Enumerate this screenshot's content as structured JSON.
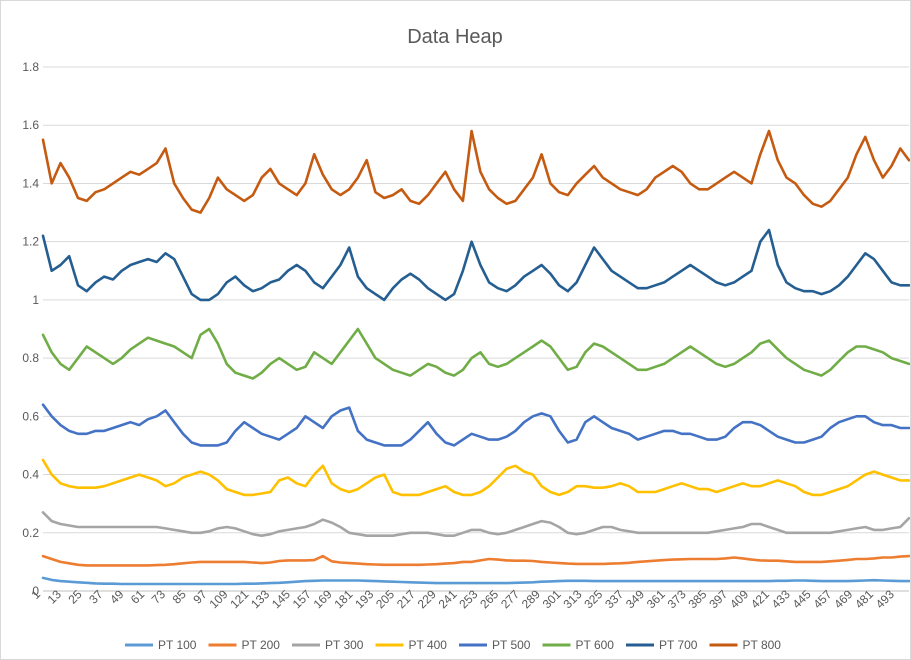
{
  "chart_data": {
    "type": "line",
    "title": "Data Heap",
    "xlabel": "",
    "ylabel": "",
    "x_start": 1,
    "x_end": 500,
    "x_tick_labels": [
      "1",
      "13",
      "25",
      "37",
      "49",
      "61",
      "73",
      "85",
      "97",
      "109",
      "121",
      "133",
      "145",
      "157",
      "169",
      "181",
      "193",
      "205",
      "217",
      "229",
      "241",
      "253",
      "265",
      "277",
      "289",
      "301",
      "313",
      "325",
      "337",
      "349",
      "361",
      "373",
      "385",
      "397",
      "409",
      "421",
      "433",
      "445",
      "457",
      "469",
      "481",
      "493"
    ],
    "y_tick_labels": [
      "0",
      "0.2",
      "0.4",
      "0.6",
      "0.8",
      "1",
      "1.2",
      "1.4",
      "1.6",
      "1.8"
    ],
    "ylim": [
      0,
      1.8
    ],
    "grid": true,
    "legend_position": "bottom",
    "series": [
      {
        "name": "PT 100",
        "color": "#5b9bd5",
        "values": [
          0.045,
          0.038,
          0.034,
          0.032,
          0.03,
          0.028,
          0.026,
          0.025,
          0.025,
          0.024,
          0.024,
          0.024,
          0.024,
          0.024,
          0.024,
          0.024,
          0.024,
          0.024,
          0.024,
          0.024,
          0.024,
          0.024,
          0.024,
          0.025,
          0.025,
          0.026,
          0.027,
          0.028,
          0.03,
          0.032,
          0.034,
          0.035,
          0.036,
          0.036,
          0.036,
          0.036,
          0.036,
          0.035,
          0.034,
          0.033,
          0.032,
          0.031,
          0.03,
          0.029,
          0.028,
          0.027,
          0.027,
          0.027,
          0.027,
          0.027,
          0.027,
          0.027,
          0.027,
          0.027,
          0.028,
          0.029,
          0.03,
          0.032,
          0.033,
          0.034,
          0.035,
          0.035,
          0.035,
          0.034,
          0.034,
          0.034,
          0.034,
          0.034,
          0.034,
          0.034,
          0.034,
          0.034,
          0.034,
          0.034,
          0.034,
          0.034,
          0.034,
          0.034,
          0.034,
          0.034,
          0.034,
          0.034,
          0.034,
          0.034,
          0.035,
          0.035,
          0.036,
          0.036,
          0.035,
          0.034,
          0.034,
          0.034,
          0.034,
          0.035,
          0.036,
          0.037,
          0.036,
          0.035,
          0.034,
          0.034
        ]
      },
      {
        "name": "PT 200",
        "color": "#ed7d31",
        "values": [
          0.12,
          0.11,
          0.1,
          0.095,
          0.09,
          0.088,
          0.088,
          0.088,
          0.088,
          0.088,
          0.088,
          0.088,
          0.088,
          0.089,
          0.09,
          0.092,
          0.095,
          0.098,
          0.1,
          0.1,
          0.1,
          0.1,
          0.1,
          0.1,
          0.098,
          0.096,
          0.098,
          0.103,
          0.105,
          0.105,
          0.105,
          0.106,
          0.12,
          0.102,
          0.098,
          0.096,
          0.094,
          0.092,
          0.091,
          0.09,
          0.09,
          0.09,
          0.09,
          0.09,
          0.091,
          0.092,
          0.094,
          0.096,
          0.1,
          0.1,
          0.105,
          0.11,
          0.108,
          0.105,
          0.104,
          0.104,
          0.103,
          0.1,
          0.098,
          0.096,
          0.094,
          0.093,
          0.093,
          0.093,
          0.093,
          0.094,
          0.095,
          0.097,
          0.1,
          0.102,
          0.104,
          0.106,
          0.108,
          0.109,
          0.11,
          0.11,
          0.11,
          0.11,
          0.112,
          0.115,
          0.112,
          0.108,
          0.105,
          0.104,
          0.104,
          0.102,
          0.1,
          0.1,
          0.1,
          0.1,
          0.102,
          0.104,
          0.107,
          0.11,
          0.11,
          0.112,
          0.115,
          0.115,
          0.118,
          0.12
        ]
      },
      {
        "name": "PT 300",
        "color": "#a5a5a5",
        "values": [
          0.27,
          0.24,
          0.23,
          0.225,
          0.22,
          0.22,
          0.22,
          0.22,
          0.22,
          0.22,
          0.22,
          0.22,
          0.22,
          0.22,
          0.215,
          0.21,
          0.205,
          0.2,
          0.2,
          0.205,
          0.215,
          0.22,
          0.215,
          0.205,
          0.195,
          0.19,
          0.195,
          0.205,
          0.21,
          0.215,
          0.22,
          0.23,
          0.245,
          0.235,
          0.22,
          0.2,
          0.195,
          0.19,
          0.19,
          0.19,
          0.19,
          0.195,
          0.2,
          0.2,
          0.2,
          0.195,
          0.19,
          0.19,
          0.2,
          0.21,
          0.21,
          0.2,
          0.195,
          0.2,
          0.21,
          0.22,
          0.23,
          0.24,
          0.235,
          0.22,
          0.2,
          0.195,
          0.2,
          0.21,
          0.22,
          0.22,
          0.21,
          0.205,
          0.2,
          0.2,
          0.2,
          0.2,
          0.2,
          0.2,
          0.2,
          0.2,
          0.2,
          0.205,
          0.21,
          0.215,
          0.22,
          0.23,
          0.23,
          0.22,
          0.21,
          0.2,
          0.2,
          0.2,
          0.2,
          0.2,
          0.2,
          0.205,
          0.21,
          0.215,
          0.22,
          0.21,
          0.21,
          0.215,
          0.22,
          0.25
        ]
      },
      {
        "name": "PT 400",
        "color": "#ffc000",
        "values": [
          0.45,
          0.4,
          0.37,
          0.36,
          0.355,
          0.355,
          0.355,
          0.36,
          0.37,
          0.38,
          0.39,
          0.4,
          0.39,
          0.38,
          0.36,
          0.37,
          0.39,
          0.4,
          0.41,
          0.4,
          0.38,
          0.35,
          0.34,
          0.33,
          0.33,
          0.335,
          0.34,
          0.38,
          0.39,
          0.37,
          0.36,
          0.4,
          0.43,
          0.37,
          0.35,
          0.34,
          0.35,
          0.37,
          0.39,
          0.4,
          0.34,
          0.33,
          0.33,
          0.33,
          0.34,
          0.35,
          0.36,
          0.34,
          0.33,
          0.33,
          0.34,
          0.36,
          0.39,
          0.42,
          0.43,
          0.41,
          0.4,
          0.36,
          0.34,
          0.33,
          0.34,
          0.36,
          0.36,
          0.355,
          0.355,
          0.36,
          0.37,
          0.36,
          0.34,
          0.34,
          0.34,
          0.35,
          0.36,
          0.37,
          0.36,
          0.35,
          0.35,
          0.34,
          0.35,
          0.36,
          0.37,
          0.36,
          0.36,
          0.37,
          0.38,
          0.37,
          0.36,
          0.34,
          0.33,
          0.33,
          0.34,
          0.35,
          0.36,
          0.38,
          0.4,
          0.41,
          0.4,
          0.39,
          0.38,
          0.38
        ]
      },
      {
        "name": "PT 500",
        "color": "#4472c4",
        "values": [
          0.64,
          0.6,
          0.57,
          0.55,
          0.54,
          0.54,
          0.55,
          0.55,
          0.56,
          0.57,
          0.58,
          0.57,
          0.59,
          0.6,
          0.62,
          0.58,
          0.54,
          0.51,
          0.5,
          0.5,
          0.5,
          0.51,
          0.55,
          0.58,
          0.56,
          0.54,
          0.53,
          0.52,
          0.54,
          0.56,
          0.6,
          0.58,
          0.56,
          0.6,
          0.62,
          0.63,
          0.55,
          0.52,
          0.51,
          0.5,
          0.5,
          0.5,
          0.52,
          0.55,
          0.58,
          0.54,
          0.51,
          0.5,
          0.52,
          0.54,
          0.53,
          0.52,
          0.52,
          0.53,
          0.55,
          0.58,
          0.6,
          0.61,
          0.6,
          0.55,
          0.51,
          0.52,
          0.58,
          0.6,
          0.58,
          0.56,
          0.55,
          0.54,
          0.52,
          0.53,
          0.54,
          0.55,
          0.55,
          0.54,
          0.54,
          0.53,
          0.52,
          0.52,
          0.53,
          0.56,
          0.58,
          0.58,
          0.57,
          0.55,
          0.53,
          0.52,
          0.51,
          0.51,
          0.52,
          0.53,
          0.56,
          0.58,
          0.59,
          0.6,
          0.6,
          0.58,
          0.57,
          0.57,
          0.56,
          0.56
        ]
      },
      {
        "name": "PT 600",
        "color": "#70ad47",
        "values": [
          0.88,
          0.82,
          0.78,
          0.76,
          0.8,
          0.84,
          0.82,
          0.8,
          0.78,
          0.8,
          0.83,
          0.85,
          0.87,
          0.86,
          0.85,
          0.84,
          0.82,
          0.8,
          0.88,
          0.9,
          0.85,
          0.78,
          0.75,
          0.74,
          0.73,
          0.75,
          0.78,
          0.8,
          0.78,
          0.76,
          0.77,
          0.82,
          0.8,
          0.78,
          0.82,
          0.86,
          0.9,
          0.85,
          0.8,
          0.78,
          0.76,
          0.75,
          0.74,
          0.76,
          0.78,
          0.77,
          0.75,
          0.74,
          0.76,
          0.8,
          0.82,
          0.78,
          0.77,
          0.78,
          0.8,
          0.82,
          0.84,
          0.86,
          0.84,
          0.8,
          0.76,
          0.77,
          0.82,
          0.85,
          0.84,
          0.82,
          0.8,
          0.78,
          0.76,
          0.76,
          0.77,
          0.78,
          0.8,
          0.82,
          0.84,
          0.82,
          0.8,
          0.78,
          0.77,
          0.78,
          0.8,
          0.82,
          0.85,
          0.86,
          0.83,
          0.8,
          0.78,
          0.76,
          0.75,
          0.74,
          0.76,
          0.79,
          0.82,
          0.84,
          0.84,
          0.83,
          0.82,
          0.8,
          0.79,
          0.78
        ]
      },
      {
        "name": "PT 700",
        "color": "#255e91",
        "values": [
          1.22,
          1.1,
          1.12,
          1.15,
          1.05,
          1.03,
          1.06,
          1.08,
          1.07,
          1.1,
          1.12,
          1.13,
          1.14,
          1.13,
          1.16,
          1.14,
          1.08,
          1.02,
          1.0,
          1.0,
          1.02,
          1.06,
          1.08,
          1.05,
          1.03,
          1.04,
          1.06,
          1.07,
          1.1,
          1.12,
          1.1,
          1.06,
          1.04,
          1.08,
          1.12,
          1.18,
          1.08,
          1.04,
          1.02,
          1.0,
          1.04,
          1.07,
          1.09,
          1.07,
          1.04,
          1.02,
          1.0,
          1.02,
          1.1,
          1.2,
          1.12,
          1.06,
          1.04,
          1.03,
          1.05,
          1.08,
          1.1,
          1.12,
          1.09,
          1.05,
          1.03,
          1.06,
          1.12,
          1.18,
          1.14,
          1.1,
          1.08,
          1.06,
          1.04,
          1.04,
          1.05,
          1.06,
          1.08,
          1.1,
          1.12,
          1.1,
          1.08,
          1.06,
          1.05,
          1.06,
          1.08,
          1.1,
          1.2,
          1.24,
          1.12,
          1.06,
          1.04,
          1.03,
          1.03,
          1.02,
          1.03,
          1.05,
          1.08,
          1.12,
          1.16,
          1.14,
          1.1,
          1.06,
          1.05,
          1.05
        ]
      },
      {
        "name": "PT 800",
        "color": "#c55a11",
        "values": [
          1.55,
          1.4,
          1.47,
          1.42,
          1.35,
          1.34,
          1.37,
          1.38,
          1.4,
          1.42,
          1.44,
          1.43,
          1.45,
          1.47,
          1.52,
          1.4,
          1.35,
          1.31,
          1.3,
          1.35,
          1.42,
          1.38,
          1.36,
          1.34,
          1.36,
          1.42,
          1.45,
          1.4,
          1.38,
          1.36,
          1.4,
          1.5,
          1.43,
          1.38,
          1.36,
          1.38,
          1.42,
          1.48,
          1.37,
          1.35,
          1.36,
          1.38,
          1.34,
          1.33,
          1.36,
          1.4,
          1.44,
          1.38,
          1.34,
          1.58,
          1.44,
          1.38,
          1.35,
          1.33,
          1.34,
          1.38,
          1.42,
          1.5,
          1.4,
          1.37,
          1.36,
          1.4,
          1.43,
          1.46,
          1.42,
          1.4,
          1.38,
          1.37,
          1.36,
          1.38,
          1.42,
          1.44,
          1.46,
          1.44,
          1.4,
          1.38,
          1.38,
          1.4,
          1.42,
          1.44,
          1.42,
          1.4,
          1.5,
          1.58,
          1.48,
          1.42,
          1.4,
          1.36,
          1.33,
          1.32,
          1.34,
          1.38,
          1.42,
          1.5,
          1.56,
          1.48,
          1.42,
          1.46,
          1.52,
          1.48
        ]
      }
    ]
  }
}
